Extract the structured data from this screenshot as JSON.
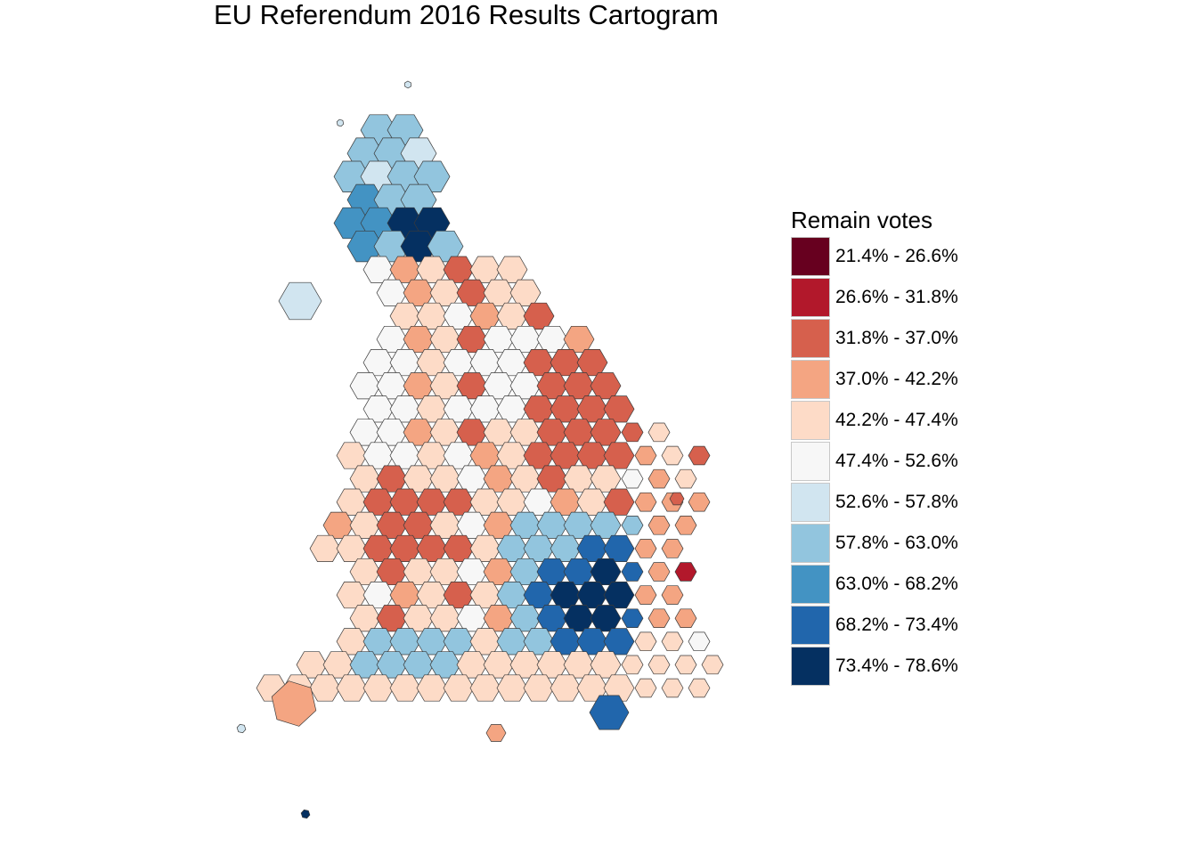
{
  "title": "EU Referendum 2016 Results Cartogram",
  "legend": {
    "title": "Remain votes",
    "classes": [
      {
        "label": "21.4% - 26.6%",
        "color": "#67001F"
      },
      {
        "label": "26.6% - 31.8%",
        "color": "#B2182B"
      },
      {
        "label": "31.8% - 37.0%",
        "color": "#D6604D"
      },
      {
        "label": "37.0% - 42.2%",
        "color": "#F4A582"
      },
      {
        "label": "42.2% - 47.4%",
        "color": "#FDDBC7"
      },
      {
        "label": "47.4% - 52.6%",
        "color": "#F7F7F7"
      },
      {
        "label": "52.6% - 57.8%",
        "color": "#D1E5F0"
      },
      {
        "label": "57.8% - 63.0%",
        "color": "#92C5DE"
      },
      {
        "label": "63.0% - 68.2%",
        "color": "#4393C3"
      },
      {
        "label": "68.2% - 73.4%",
        "color": "#2166AC"
      },
      {
        "label": "73.4% - 78.6%",
        "color": "#053061"
      }
    ]
  }
}
